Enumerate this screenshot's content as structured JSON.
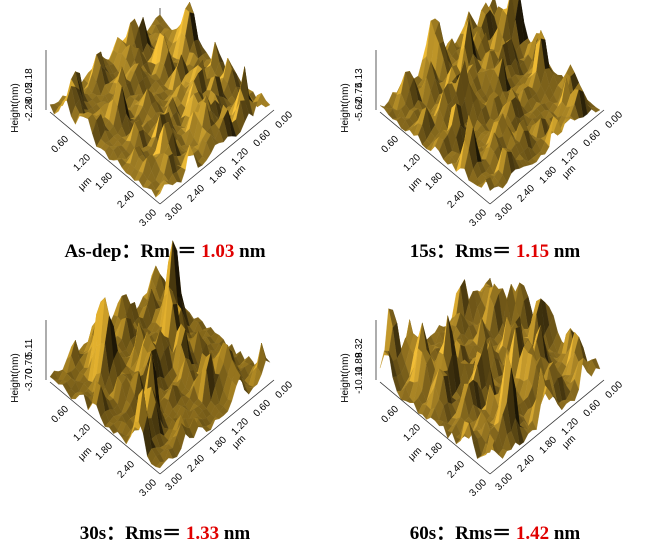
{
  "panels": [
    {
      "id": "asdep",
      "sample": "As-dep",
      "separator": "：Rms＝",
      "rms": "1.03",
      "unit": "nm",
      "z_axis": {
        "label": "Height(nm)",
        "ticks": [
          "2.18",
          "-0.05",
          "-2.28"
        ]
      },
      "x_axis": {
        "ticks": [
          "0.60",
          "1.20",
          "1.80",
          "2.40",
          "3.00"
        ],
        "unit": "μm"
      },
      "y_axis": {
        "ticks": [
          "0.00",
          "0.60",
          "1.20",
          "1.80",
          "2.40",
          "3.00"
        ],
        "unit": "μm"
      },
      "surface_color": "#b8912e"
    },
    {
      "id": "15s",
      "sample": "15s",
      "separator": "：Rms＝",
      "rms": "1.15",
      "unit": "nm",
      "z_axis": {
        "label": "Height(nm)",
        "ticks": [
          "4.13",
          "-0.75",
          "-5.62"
        ]
      },
      "x_axis": {
        "ticks": [
          "0.60",
          "1.20",
          "1.80",
          "2.40",
          "3.00"
        ],
        "unit": "μm"
      },
      "y_axis": {
        "ticks": [
          "0.00",
          "0.60",
          "1.20",
          "1.80",
          "2.40",
          "3.00"
        ],
        "unit": "μm"
      },
      "surface_color": "#b08a2a"
    },
    {
      "id": "30s",
      "sample": "30s",
      "separator": "：Rms＝",
      "rms": "1.33",
      "unit": "nm",
      "z_axis": {
        "label": "Height(nm)",
        "ticks": [
          "5.11",
          "0.70",
          "-3.70"
        ]
      },
      "x_axis": {
        "ticks": [
          "0.60",
          "1.20",
          "1.80",
          "2.40",
          "3.00"
        ],
        "unit": "μm"
      },
      "y_axis": {
        "ticks": [
          "0.00",
          "0.60",
          "1.20",
          "1.80",
          "2.40",
          "3.00"
        ],
        "unit": "μm"
      },
      "surface_color": "#a88326"
    },
    {
      "id": "60s",
      "sample": "60s",
      "separator": "：Rms＝",
      "rms": "1.42",
      "unit": "nm",
      "z_axis": {
        "label": "Height(nm)",
        "ticks": [
          "8.32",
          "-0.89",
          "-10.11"
        ]
      },
      "x_axis": {
        "ticks": [
          "0.60",
          "1.20",
          "1.80",
          "2.40",
          "3.00"
        ],
        "unit": "μm"
      },
      "y_axis": {
        "ticks": [
          "0.00",
          "0.60",
          "1.20",
          "1.80",
          "2.40",
          "3.00"
        ],
        "unit": "μm"
      },
      "surface_color": "#b38c2c"
    }
  ]
}
